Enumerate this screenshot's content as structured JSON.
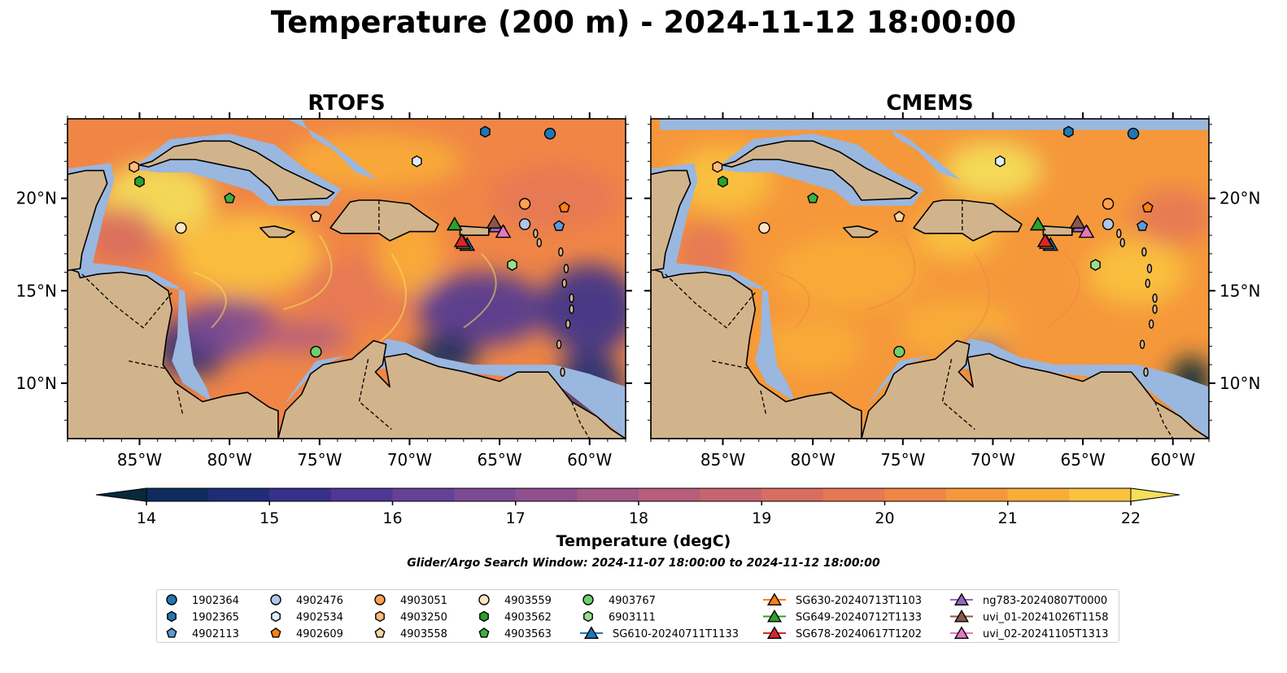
{
  "title": "Temperature (200 m) - 2024-11-12 18:00:00",
  "panels": [
    {
      "title": "RTOFS",
      "style": "rtofs"
    },
    {
      "title": "CMEMS",
      "style": "cmems"
    }
  ],
  "map_axes": {
    "x_ticks": [
      "85°W",
      "80°W",
      "75°W",
      "70°W",
      "65°W",
      "60°W"
    ],
    "x_tick_lons": [
      -85,
      -80,
      -75,
      -70,
      -65,
      -60
    ],
    "y_ticks": [
      "20°N",
      "15°N",
      "10°N"
    ],
    "y_tick_lats": [
      20,
      15,
      10
    ],
    "lon_range": [
      -89,
      -58
    ],
    "lat_range": [
      7,
      24.3
    ]
  },
  "colorbar": {
    "label": "Temperature (degC)",
    "ticks": [
      "14",
      "15",
      "16",
      "17",
      "18",
      "19",
      "20",
      "21",
      "22"
    ],
    "min": 14,
    "max": 22,
    "step": 0.5,
    "colors": [
      "#062a3c",
      "#0f2b5e",
      "#1f2d78",
      "#37308c",
      "#4e3795",
      "#654197",
      "#7b4a95",
      "#904f8f",
      "#a35885",
      "#b65e7b",
      "#c7656f",
      "#d86d61",
      "#e67854",
      "#f08646",
      "#f5983b",
      "#f8ad38",
      "#fac33f",
      "#f4e05a"
    ],
    "extend": "both"
  },
  "search_window": "Glider/Argo Search Window: 2024-11-07 18:00:00 to 2024-11-12 18:00:00",
  "colors": {
    "land": "#d2b48c",
    "shallow": "#9ab7e0",
    "deep": "#062a3c"
  },
  "chart_data": {
    "type": "heatmap",
    "variable": "Temperature (200 m)",
    "units": "degC",
    "time": "2024-11-12 18:00:00",
    "color_scale": [
      14,
      22
    ],
    "observations": [
      {
        "name": "1902364",
        "marker": "circle",
        "color": "#1f77b4",
        "lon": -62.2,
        "lat": 23.5
      },
      {
        "name": "1902365",
        "marker": "hexagon",
        "color": "#1f77b4",
        "lon": -65.8,
        "lat": 23.6
      },
      {
        "name": "4902113",
        "marker": "pentagon",
        "color": "#5b9bd5",
        "lon": -61.7,
        "lat": 18.5
      },
      {
        "name": "4902476",
        "marker": "circle",
        "color": "#aec7e8",
        "lon": -63.6,
        "lat": 18.6
      },
      {
        "name": "4902534",
        "marker": "hexagon",
        "color": "#ddeeff",
        "lon": -69.6,
        "lat": 22.0
      },
      {
        "name": "4902609",
        "marker": "pentagon",
        "color": "#ff7f0e",
        "lon": -61.4,
        "lat": 19.5
      },
      {
        "name": "4903051",
        "marker": "circle",
        "color": "#ffa050",
        "lon": -63.6,
        "lat": 19.7
      },
      {
        "name": "4903250",
        "marker": "hexagon",
        "color": "#ffbb78",
        "lon": -85.3,
        "lat": 21.7
      },
      {
        "name": "4903558",
        "marker": "pentagon",
        "color": "#ffd5a0",
        "lon": -75.2,
        "lat": 19.0
      },
      {
        "name": "4903559",
        "marker": "circle",
        "color": "#ffe4c4",
        "lon": -82.7,
        "lat": 18.4
      },
      {
        "name": "4903562",
        "marker": "hexagon",
        "color": "#2ca02c",
        "lon": -85.0,
        "lat": 20.9
      },
      {
        "name": "4903563",
        "marker": "pentagon",
        "color": "#3cb043",
        "lon": -80.0,
        "lat": 20.0
      },
      {
        "name": "4903767",
        "marker": "circle",
        "color": "#6fcf6f",
        "lon": -75.2,
        "lat": 11.7
      },
      {
        "name": "6903111",
        "marker": "hexagon",
        "color": "#98df8a",
        "lon": -64.3,
        "lat": 16.4
      },
      {
        "name": "SG610-20240711T1133",
        "marker": "triangle",
        "color": "#1f77b4",
        "lon": -66.8,
        "lat": 17.5
      },
      {
        "name": "SG630-20240713T1103",
        "marker": "triangle",
        "color": "#ff7f0e",
        "lon": -67.0,
        "lat": 17.6
      },
      {
        "name": "SG649-20240712T1133",
        "marker": "triangle",
        "color": "#2ca02c",
        "lon": -67.5,
        "lat": 18.6
      },
      {
        "name": "SG678-20240617T1202",
        "marker": "triangle",
        "color": "#d62728",
        "lon": -67.1,
        "lat": 17.7
      },
      {
        "name": "ng783-20240807T0000",
        "marker": "triangle",
        "color": "#9467bd",
        "lon": -65.2,
        "lat": 18.5
      },
      {
        "name": "uvi_01-20241026T1158",
        "marker": "triangle",
        "color": "#8c564b",
        "lon": -65.3,
        "lat": 18.7
      },
      {
        "name": "uvi_02-20241105T1313",
        "marker": "triangle",
        "color": "#e377c2",
        "lon": -64.8,
        "lat": 18.2
      }
    ]
  },
  "legend_columns": [
    [
      "1902364",
      "1902365",
      "4902113"
    ],
    [
      "4902476",
      "4902534",
      "4902609"
    ],
    [
      "4903051",
      "4903250",
      "4903558"
    ],
    [
      "4903559",
      "4903562",
      "4903563"
    ],
    [
      "4903767",
      "6903111",
      "SG610-20240711T1133"
    ],
    [
      "SG630-20240713T1103",
      "SG649-20240712T1133",
      "SG678-20240617T1202"
    ],
    [
      "ng783-20240807T0000",
      "uvi_01-20241026T1158",
      "uvi_02-20241105T1313"
    ]
  ]
}
